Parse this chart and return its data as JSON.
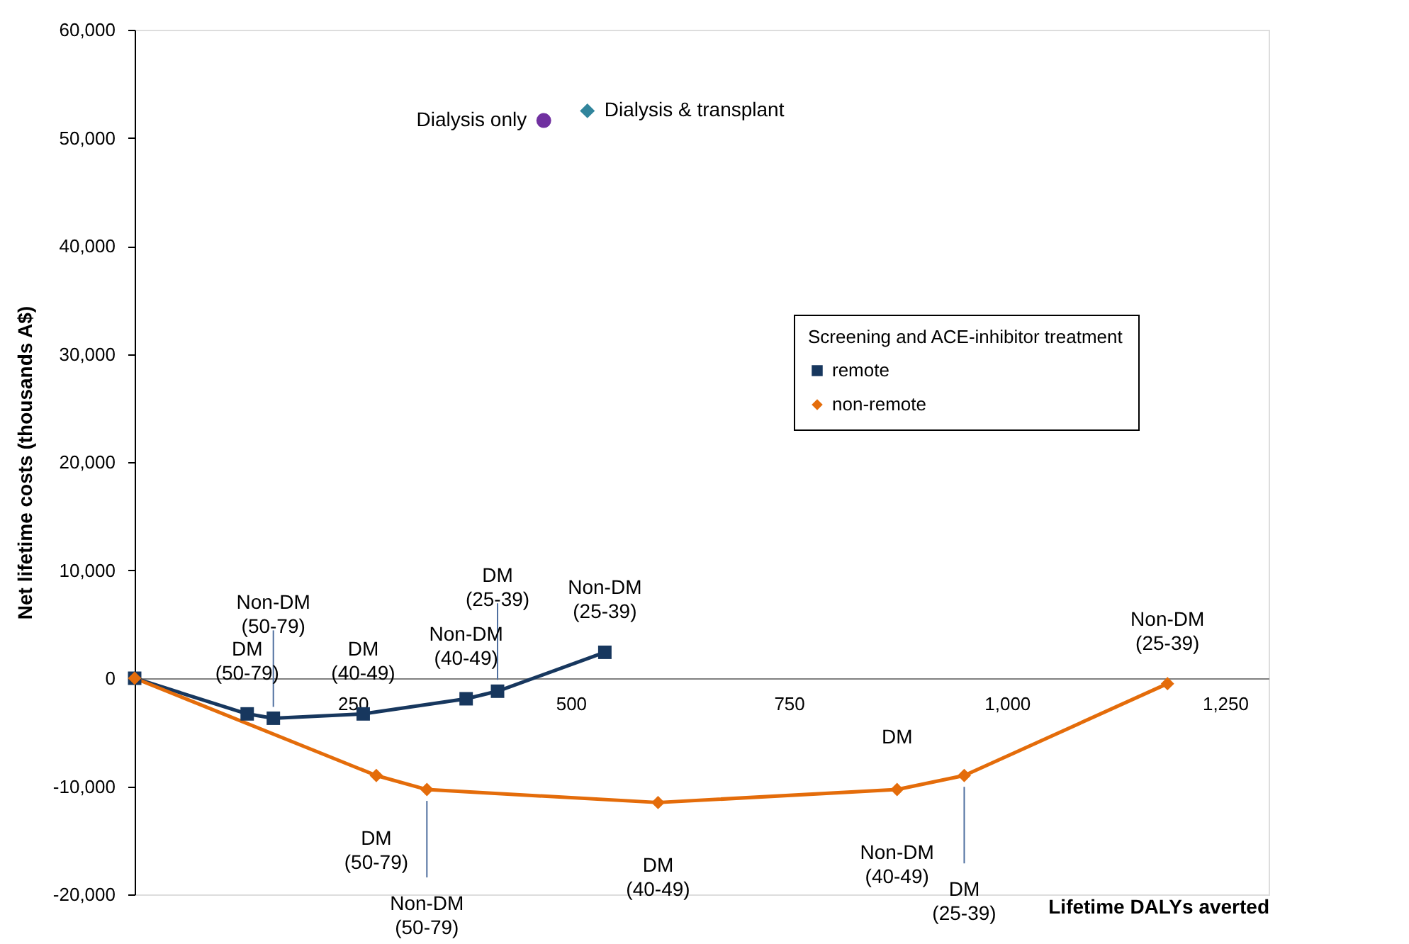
{
  "chart_data": {
    "type": "line",
    "xlabel": "Lifetime DALYs averted",
    "ylabel": "Net lifetime costs (thousands A$)",
    "legend_title": "Screening and ACE-inhibitor treatment",
    "legend": "right",
    "xlim": [
      0,
      1300
    ],
    "xticks": [
      250,
      500,
      750,
      {
        "value": 1000,
        "label": "1,000"
      },
      {
        "value": 1250,
        "label": "1,250"
      }
    ],
    "ylim": [
      -20000,
      60000
    ],
    "yticks": [
      {
        "value": -20000,
        "label": "-20,000"
      },
      {
        "value": -10000,
        "label": "-10,000"
      },
      0,
      {
        "value": 10000,
        "label": "10,000"
      },
      {
        "value": 20000,
        "label": "20,000"
      },
      {
        "value": 30000,
        "label": "30,000"
      },
      {
        "value": 40000,
        "label": "40,000"
      },
      {
        "value": 50000,
        "label": "50,000"
      },
      {
        "value": 60000,
        "label": "60,000"
      }
    ],
    "series": [
      {
        "name": "remote",
        "color": "#17375e",
        "marker": "square",
        "x": [
          0,
          129,
          159,
          262,
          380,
          416,
          539
        ],
        "values": [
          0,
          -3300,
          -3700,
          -3300,
          -1900,
          -1200,
          2400
        ]
      },
      {
        "name": "non-remote",
        "color": "#e46c0a",
        "marker": "diamond",
        "x": [
          0,
          277,
          335,
          600,
          874,
          951,
          1184
        ],
        "values": [
          0,
          -9000,
          -10300,
          -11500,
          -10300,
          -9000,
          -500
        ]
      },
      {
        "name": "Dialysis only",
        "type": "scatter",
        "color": "#7030a0",
        "marker": "circle",
        "x": [
          469
        ],
        "values": [
          51600
        ]
      },
      {
        "name": "Dialysis & transplant",
        "type": "scatter",
        "color": "#31859c",
        "marker": "diamond",
        "x": [
          519
        ],
        "values": [
          52500
        ]
      }
    ],
    "annotations": [
      {
        "text": "DM\n(50-79)",
        "x": 129,
        "y": -3300
      },
      {
        "text": "Non-DM\n(50-79)",
        "x": 159,
        "y": -3700
      },
      {
        "text": "DM\n(40-49)",
        "x": 262,
        "y": -3300
      },
      {
        "text": "Non-DM\n(40-49)",
        "x": 380,
        "y": -1900
      },
      {
        "text": "DM\n(25-39)",
        "x": 416,
        "y": -1200
      },
      {
        "text": "Non-DM\n(25-39)",
        "x": 539,
        "y": 2400
      },
      {
        "text": "DM\n(50-79)",
        "x": 277,
        "y": -9000
      },
      {
        "text": "Non-DM\n(50-79)",
        "x": 335,
        "y": -10300
      },
      {
        "text": "DM\n(40-49)",
        "x": 600,
        "y": -11500
      },
      {
        "text": "DM",
        "x": 874,
        "y": -10300
      },
      {
        "text": "Non-DM\n(40-49)",
        "x": 874,
        "y": -10300
      },
      {
        "text": "DM\n(25-39)",
        "x": 951,
        "y": -9000
      },
      {
        "text": "Non-DM\n(25-39)",
        "x": 1184,
        "y": -500
      }
    ]
  }
}
